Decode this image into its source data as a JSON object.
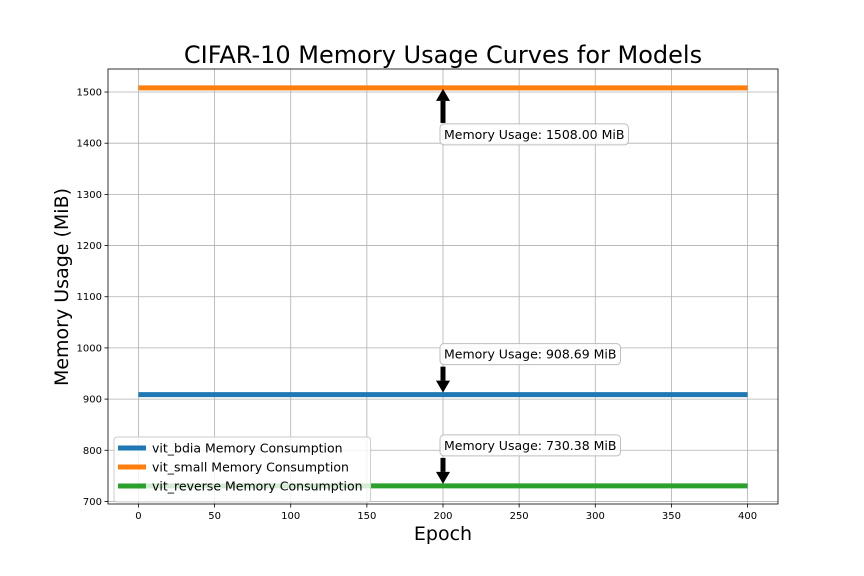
{
  "chart_data": {
    "type": "line",
    "title": "CIFAR-10 Memory Usage Curves for Models",
    "xlabel": "Epoch",
    "ylabel": "Memory Usage (MiB)",
    "xlim": [
      -20,
      420
    ],
    "ylim": [
      695,
      1545
    ],
    "xticks": [
      0,
      50,
      100,
      150,
      200,
      250,
      300,
      350,
      400
    ],
    "yticks": [
      700,
      800,
      900,
      1000,
      1100,
      1200,
      1300,
      1400,
      1500
    ],
    "grid": true,
    "legend_position": "lower-left",
    "x": [
      0,
      400
    ],
    "series": [
      {
        "name": "vit_bdia Memory Consumption",
        "color": "#1f77b4",
        "values": [
          908.69,
          908.69
        ]
      },
      {
        "name": "vit_small Memory Consumption",
        "color": "#ff7f0e",
        "values": [
          1508.0,
          1508.0
        ]
      },
      {
        "name": "vit_reverse Memory Consumption",
        "color": "#2ca02c",
        "values": [
          730.38,
          730.38
        ]
      }
    ],
    "annotations": [
      {
        "text": "Memory Usage: 1508.00 MiB",
        "x": 200,
        "y": 1508.0,
        "direction": "below"
      },
      {
        "text": "Memory Usage: 908.69 MiB",
        "x": 200,
        "y": 908.69,
        "direction": "above"
      },
      {
        "text": "Memory Usage: 730.38 MiB",
        "x": 200,
        "y": 730.38,
        "direction": "above"
      }
    ]
  }
}
